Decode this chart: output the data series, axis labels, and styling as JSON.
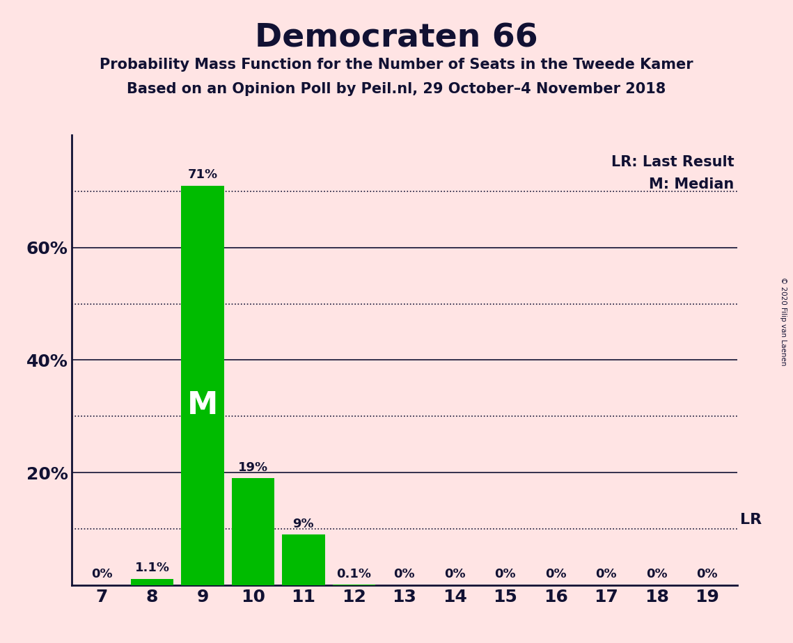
{
  "title": "Democraten 66",
  "subtitle1": "Probability Mass Function for the Number of Seats in the Tweede Kamer",
  "subtitle2": "Based on an Opinion Poll by Peil.nl, 29 October–4 November 2018",
  "copyright": "© 2020 Filip van Laenen",
  "categories": [
    7,
    8,
    9,
    10,
    11,
    12,
    13,
    14,
    15,
    16,
    17,
    18,
    19
  ],
  "values": [
    0.0,
    1.1,
    71.0,
    19.0,
    9.0,
    0.1,
    0.0,
    0.0,
    0.0,
    0.0,
    0.0,
    0.0,
    0.0
  ],
  "labels": [
    "0%",
    "1.1%",
    "71%",
    "19%",
    "9%",
    "0.1%",
    "0%",
    "0%",
    "0%",
    "0%",
    "0%",
    "0%",
    "0%"
  ],
  "bar_color": "#00BB00",
  "background_color": "#FFE4E4",
  "text_color": "#111133",
  "median_seat": 9,
  "last_result_value": 10.0,
  "median_label": "M",
  "lr_label": "LR",
  "legend_lr": "LR: Last Result",
  "legend_m": "M: Median",
  "ylim_max": 80,
  "dotted_lines": [
    10,
    30,
    50,
    70
  ],
  "solid_lines": [
    20,
    40,
    60
  ]
}
